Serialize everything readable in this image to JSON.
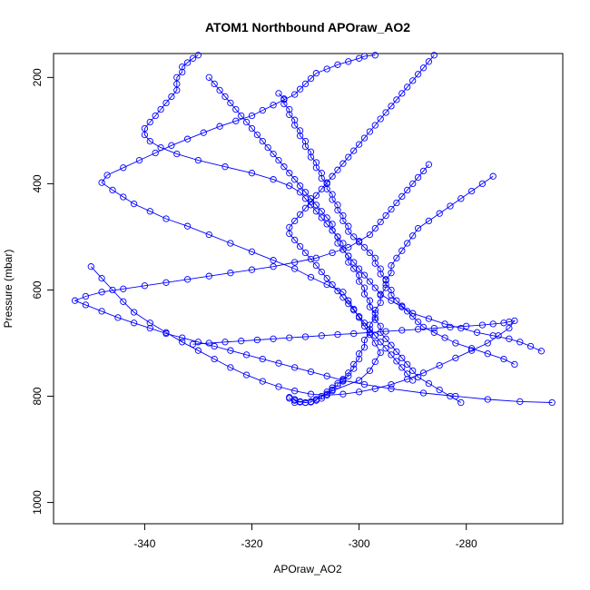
{
  "chart_data": {
    "type": "line",
    "title": "ATOM1 Northbound APOraw_AO2",
    "xlabel": "APOraw_AO2",
    "ylabel": "Pressure (mbar)",
    "xlim": [
      -357,
      -262
    ],
    "ylim": [
      1040,
      155
    ],
    "y_axis_reversed": true,
    "x_ticks": [
      -340,
      -320,
      -300,
      -280
    ],
    "y_ticks": [
      200,
      400,
      600,
      800,
      1000
    ],
    "grid": false,
    "legend": "none",
    "colors": {
      "series": "#0000ff",
      "axes": "#000000"
    },
    "marker": "open-circle",
    "series": [
      {
        "x": [
          -312,
          -308,
          -305,
          -300,
          -298,
          -297,
          -296,
          -297,
          -298,
          -299,
          -300,
          -301,
          -302,
          -303,
          -306,
          -309,
          -312,
          -316,
          -320,
          -324,
          -328,
          -332,
          -336,
          -339,
          -342,
          -344,
          -346,
          -348,
          -347,
          -344,
          -341,
          -338,
          -335,
          -332,
          -329,
          -326,
          -323,
          -320,
          -318,
          -316,
          -314,
          -312,
          -311,
          -310,
          -309,
          -308,
          -306,
          -304,
          -302,
          -300,
          -299,
          -297
        ],
        "y": [
          812,
          806,
          790,
          770,
          752,
          735,
          718,
          700,
          684,
          668,
          652,
          636,
          620,
          604,
          590,
          576,
          560,
          544,
          528,
          512,
          496,
          480,
          466,
          452,
          438,
          425,
          412,
          398,
          384,
          370,
          356,
          342,
          328,
          316,
          304,
          292,
          282,
          272,
          262,
          252,
          242,
          232,
          222,
          212,
          202,
          192,
          184,
          176,
          170,
          164,
          160,
          158
        ]
      },
      {
        "x": [
          -266,
          -268,
          -270,
          -272,
          -275,
          -278,
          -281,
          -284,
          -287,
          -290,
          -292,
          -294,
          -296,
          -297,
          -298,
          -299,
          -300,
          -301,
          -302,
          -303,
          -303,
          -304,
          -305,
          -306,
          -307,
          -308,
          -309,
          -310,
          -311,
          -313,
          -316,
          -320,
          -325,
          -330,
          -334,
          -337,
          -339,
          -340,
          -340,
          -339,
          -338,
          -337,
          -336,
          -335,
          -334,
          -334,
          -334,
          -333,
          -333,
          -332,
          -331,
          -330
        ],
        "y": [
          715,
          706,
          698,
          692,
          686,
          680,
          672,
          664,
          654,
          644,
          632,
          620,
          608,
          596,
          584,
          572,
          560,
          548,
          536,
          524,
          512,
          500,
          488,
          476,
          464,
          452,
          440,
          428,
          416,
          404,
          392,
          380,
          368,
          356,
          344,
          332,
          320,
          308,
          296,
          284,
          272,
          260,
          248,
          236,
          224,
          212,
          200,
          190,
          180,
          172,
          164,
          158
        ]
      },
      {
        "x": [
          -264,
          -270,
          -276,
          -282,
          -288,
          -294,
          -299,
          -303,
          -306,
          -309,
          -312,
          -315,
          -318,
          -321,
          -324,
          -327,
          -330,
          -333,
          -336,
          -339,
          -342,
          -345,
          -348,
          -351,
          -353,
          -351,
          -348,
          -344,
          -340,
          -336,
          -332,
          -328,
          -324,
          -320,
          -316,
          -312,
          -308,
          -305,
          -302,
          -300,
          -298,
          -297,
          -296,
          -295,
          -294,
          -293,
          -292,
          -291,
          -290,
          -289,
          -288,
          -287
        ],
        "y": [
          812,
          810,
          806,
          800,
          794,
          786,
          778,
          770,
          762,
          754,
          746,
          738,
          730,
          722,
          714,
          706,
          698,
          690,
          682,
          672,
          662,
          652,
          640,
          628,
          620,
          612,
          604,
          598,
          592,
          586,
          580,
          574,
          568,
          562,
          556,
          548,
          540,
          530,
          520,
          508,
          496,
          484,
          472,
          460,
          448,
          436,
          424,
          412,
          400,
          388,
          376,
          364
        ]
      },
      {
        "x": [
          -281,
          -283,
          -285,
          -287,
          -289,
          -290,
          -291,
          -292,
          -293,
          -294,
          -295,
          -296,
          -296,
          -297,
          -297,
          -298,
          -298,
          -299,
          -299,
          -300,
          -300,
          -301,
          -302,
          -302,
          -303,
          -304,
          -304,
          -305,
          -305,
          -306,
          -307,
          -308,
          -309,
          -310,
          -311,
          -312,
          -313,
          -314,
          -315,
          -316,
          -317,
          -318,
          -319,
          -320,
          -321,
          -322,
          -323,
          -324,
          -325,
          -326,
          -327,
          -328
        ],
        "y": [
          812,
          800,
          788,
          776,
          764,
          752,
          740,
          728,
          716,
          704,
          692,
          680,
          668,
          656,
          644,
          632,
          620,
          608,
          596,
          584,
          572,
          560,
          548,
          536,
          524,
          512,
          500,
          488,
          476,
          464,
          452,
          440,
          428,
          416,
          404,
          392,
          380,
          368,
          356,
          344,
          332,
          320,
          308,
          296,
          284,
          272,
          260,
          248,
          236,
          224,
          212,
          200
        ]
      },
      {
        "x": [
          -271,
          -273,
          -276,
          -279,
          -282,
          -284,
          -286,
          -288,
          -289,
          -290,
          -291,
          -292,
          -293,
          -294,
          -294,
          -295,
          -295,
          -296,
          -296,
          -297,
          -297,
          -298,
          -299,
          -300,
          -301,
          -302,
          -302,
          -303,
          -303,
          -304,
          -304,
          -305,
          -305,
          -306,
          -306,
          -307,
          -307,
          -308,
          -308,
          -309,
          -309,
          -310,
          -310,
          -311,
          -311,
          -312,
          -312,
          -313,
          -313,
          -314,
          -314,
          -315
        ],
        "y": [
          740,
          730,
          720,
          710,
          700,
          690,
          680,
          670,
          660,
          650,
          640,
          630,
          620,
          610,
          600,
          590,
          580,
          570,
          560,
          550,
          540,
          530,
          520,
          510,
          500,
          490,
          480,
          470,
          460,
          450,
          440,
          430,
          420,
          410,
          400,
          390,
          380,
          370,
          360,
          350,
          340,
          330,
          320,
          310,
          300,
          290,
          280,
          270,
          260,
          250,
          240,
          230
        ]
      },
      {
        "x": [
          -275,
          -277,
          -279,
          -281,
          -283,
          -285,
          -287,
          -289,
          -290,
          -291,
          -292,
          -293,
          -294,
          -294,
          -295,
          -295,
          -296,
          -296,
          -297,
          -297,
          -298,
          -298,
          -299,
          -299,
          -300,
          -300,
          -301,
          -301,
          -302,
          -302,
          -303,
          -303,
          -304,
          -304,
          -305,
          -305,
          -306,
          -306,
          -307,
          -307,
          -308,
          -308,
          -309,
          -309,
          -310,
          -310,
          -311,
          -311,
          -312,
          -312,
          -313,
          -313
        ],
        "y": [
          386,
          400,
          414,
          428,
          442,
          456,
          470,
          484,
          498,
          512,
          526,
          540,
          554,
          568,
          582,
          596,
          610,
          624,
          638,
          652,
          666,
          680,
          694,
          708,
          720,
          730,
          740,
          748,
          756,
          762,
          768,
          772,
          776,
          780,
          784,
          788,
          792,
          796,
          800,
          804,
          806,
          808,
          810,
          811,
          812,
          812,
          811,
          810,
          808,
          806,
          804,
          802
        ]
      },
      {
        "x": [
          -286,
          -287,
          -288,
          -289,
          -290,
          -291,
          -292,
          -293,
          -294,
          -295,
          -296,
          -297,
          -298,
          -299,
          -300,
          -301,
          -302,
          -303,
          -304,
          -305,
          -306,
          -307,
          -308,
          -309,
          -310,
          -311,
          -312,
          -313,
          -313,
          -312,
          -311,
          -310,
          -309,
          -308,
          -307,
          -306,
          -305,
          -304,
          -303,
          -302,
          -301,
          -300,
          -299,
          -298,
          -297,
          -296,
          -295,
          -294,
          -293,
          -292,
          -291,
          -290
        ],
        "y": [
          158,
          170,
          182,
          194,
          206,
          218,
          230,
          242,
          254,
          266,
          278,
          290,
          302,
          314,
          326,
          338,
          350,
          362,
          374,
          386,
          398,
          410,
          422,
          434,
          446,
          458,
          470,
          482,
          494,
          506,
          518,
          530,
          542,
          554,
          566,
          578,
          590,
          602,
          614,
          626,
          638,
          650,
          662,
          674,
          686,
          698,
          710,
          722,
          734,
          746,
          758,
          770
        ]
      },
      {
        "x": [
          -331,
          -328,
          -325,
          -322,
          -319,
          -316,
          -313,
          -310,
          -307,
          -304,
          -301,
          -298,
          -295,
          -292,
          -289,
          -286,
          -283,
          -280,
          -277,
          -275,
          -273,
          -272,
          -271,
          -272,
          -274,
          -276,
          -279,
          -282,
          -285,
          -288,
          -291,
          -294,
          -297,
          -300,
          -303,
          -306,
          -309,
          -312,
          -315,
          -318,
          -321,
          -324,
          -327,
          -330,
          -333,
          -336,
          -339,
          -342,
          -344,
          -346,
          -348,
          -350
        ],
        "y": [
          702,
          700,
          698,
          696,
          694,
          692,
          690,
          688,
          686,
          684,
          682,
          680,
          678,
          676,
          674,
          672,
          670,
          668,
          666,
          664,
          662,
          660,
          658,
          672,
          686,
          700,
          714,
          728,
          742,
          756,
          768,
          778,
          786,
          792,
          796,
          798,
          796,
          790,
          782,
          772,
          760,
          746,
          730,
          714,
          698,
          680,
          662,
          642,
          622,
          600,
          578,
          556
        ]
      }
    ]
  }
}
